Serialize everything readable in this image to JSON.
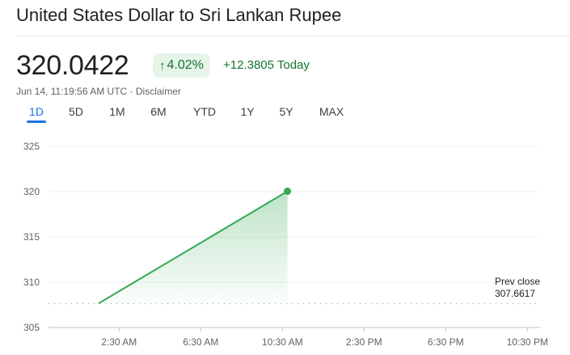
{
  "header": {
    "title": "United States Dollar to Sri Lankan Rupee",
    "price": "320.0422",
    "badge_arrow": "↑",
    "badge_percent": "4.02%",
    "change_text": "+12.3805 Today",
    "timestamp": "Jun 14, 11:19:56 AM UTC",
    "separator": "·",
    "disclaimer": "Disclaimer"
  },
  "tabs": [
    {
      "label": "1D",
      "active": true
    },
    {
      "label": "5D",
      "active": false
    },
    {
      "label": "1M",
      "active": false
    },
    {
      "label": "6M",
      "active": false
    },
    {
      "label": "YTD",
      "active": false
    },
    {
      "label": "1Y",
      "active": false
    },
    {
      "label": "5Y",
      "active": false
    },
    {
      "label": "MAX",
      "active": false
    }
  ],
  "colors": {
    "line": "#34a853",
    "positive_text": "#137333",
    "positive_bg": "#e6f4ea",
    "active_tab": "#1a73e8",
    "grid": "#f1f3f4"
  },
  "chart_data": {
    "type": "area",
    "x": [
      "1:30 AM",
      "10:45 AM"
    ],
    "y": [
      307.6617,
      320.0422
    ],
    "x_tick_labels": [
      "2:30 AM",
      "6:30 AM",
      "10:30 AM",
      "2:30 PM",
      "6:30 PM",
      "10:30 PM"
    ],
    "y_tick_labels": [
      "325",
      "320",
      "315",
      "310",
      "305"
    ],
    "ylim": [
      305,
      325
    ],
    "grid": true,
    "reference_line": {
      "label_line1": "Prev close",
      "label_line2": "307.6617",
      "value": 307.6617
    }
  }
}
